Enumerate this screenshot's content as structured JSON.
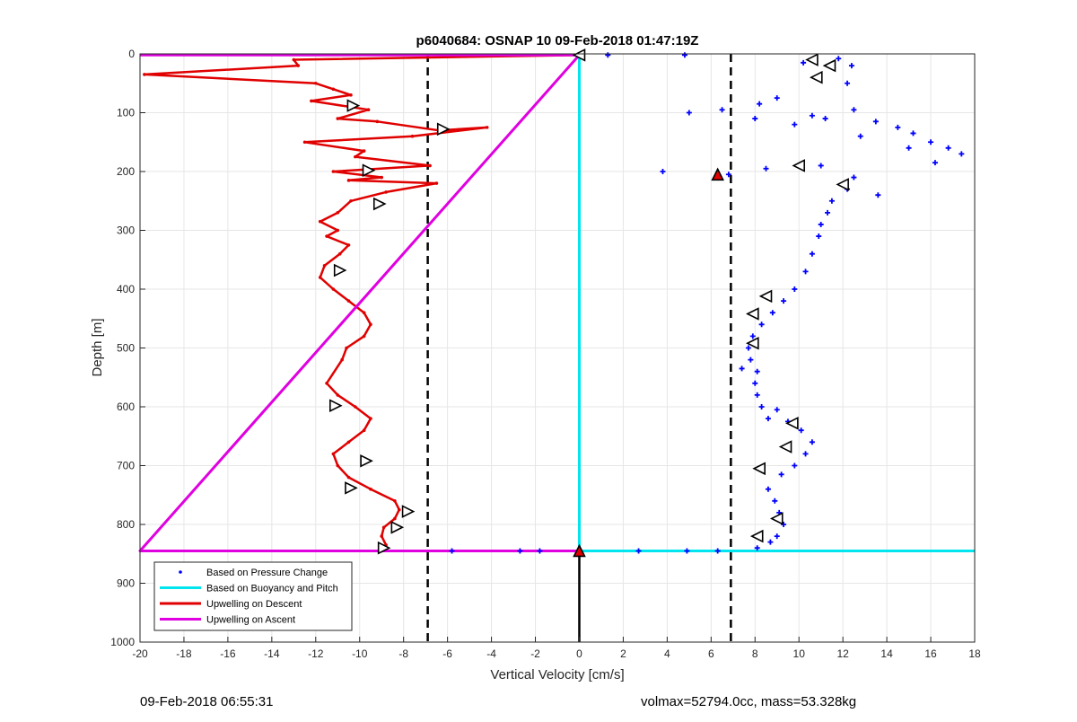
{
  "chart_data": {
    "type": "scatter",
    "title": "p6040684: OSNAP 10 09-Feb-2018 01:47:19Z",
    "xlabel": "Vertical Velocity [cm/s]",
    "ylabel": "Depth [m]",
    "xlim": [
      -20,
      18
    ],
    "ylim": [
      0,
      1000
    ],
    "y_reversed": true,
    "grid": true,
    "legend_position": "bottom-left",
    "x_ticks": [
      "-20",
      "-18",
      "-16",
      "-14",
      "-12",
      "-10",
      "-8",
      "-6",
      "-4",
      "-2",
      "0",
      "2",
      "4",
      "6",
      "8",
      "10",
      "12",
      "14",
      "16",
      "18"
    ],
    "y_ticks": [
      "0",
      "100",
      "200",
      "300",
      "400",
      "500",
      "600",
      "700",
      "800",
      "900",
      "1000"
    ],
    "reference_lines": [
      {
        "style": "dashed",
        "color": "#000000",
        "x": -6.9
      },
      {
        "style": "dashed",
        "color": "#000000",
        "x": 6.9
      }
    ],
    "series": [
      {
        "name": "Based on Pressure Change",
        "style": "points",
        "color": "#0000ff",
        "x": [
          1.3,
          4.8,
          10.2,
          11.8,
          12.4,
          12.2,
          8.2,
          9.0,
          10.6,
          11.2,
          12.5,
          13.5,
          14.5,
          15.2,
          16.0,
          16.8,
          17.4,
          16.2,
          15.0,
          12.8,
          9.8,
          8.0,
          6.5,
          5.0,
          3.8,
          6.8,
          8.5,
          11.0,
          12.5,
          13.6,
          12.2,
          11.5,
          11.3,
          11.0,
          10.9,
          10.6,
          10.3,
          9.8,
          9.3,
          8.8,
          8.3,
          7.9,
          7.7,
          7.8,
          8.1,
          8.0,
          7.4,
          8.1,
          8.3,
          8.6,
          9.0,
          9.5,
          10.1,
          10.6,
          10.3,
          9.8,
          9.2,
          8.6,
          8.9,
          9.1,
          9.3,
          9.0,
          8.7,
          8.1,
          6.3,
          4.9,
          2.7,
          -1.8,
          -2.7,
          -5.8
        ],
        "y": [
          2,
          2,
          15,
          8,
          20,
          50,
          85,
          75,
          105,
          110,
          95,
          115,
          125,
          135,
          150,
          160,
          170,
          185,
          160,
          140,
          120,
          110,
          95,
          100,
          200,
          205,
          195,
          190,
          210,
          240,
          230,
          250,
          270,
          290,
          310,
          340,
          370,
          400,
          420,
          440,
          460,
          480,
          500,
          520,
          540,
          560,
          535,
          580,
          600,
          620,
          605,
          625,
          640,
          660,
          680,
          700,
          715,
          740,
          760,
          780,
          800,
          820,
          830,
          840,
          845,
          845,
          845,
          845,
          845,
          845
        ]
      },
      {
        "name": "Based on Buoyancy and Pitch",
        "style": "line",
        "color": "#00e5ee",
        "x": [
          0,
          0,
          0,
          18
        ],
        "y": [
          2,
          845,
          845,
          845
        ]
      },
      {
        "name": "Upwelling on Descent",
        "style": "line",
        "color": "#e00000",
        "x": [
          0,
          -13,
          -12.8,
          -19.8,
          -12,
          -11.2,
          -10.4,
          -12.2,
          -9.6,
          -11,
          -9.2,
          -6.4,
          -4.2,
          -7.6,
          -12.5,
          -9.8,
          -10.2,
          -6.8,
          -11.2,
          -9.0,
          -10.5,
          -6.5,
          -8.8,
          -10.4,
          -11.0,
          -11.8,
          -11.0,
          -11.5,
          -10.5,
          -10.9,
          -11.6,
          -11.8,
          -11.2,
          -10.5,
          -9.8,
          -9.5,
          -9.8,
          -10.6,
          -10.8,
          -11.5,
          -11.0,
          -10.2,
          -9.5,
          -9.8,
          -10.5,
          -11.2,
          -11.0,
          -10.5,
          -9.5,
          -8.4,
          -8.2,
          -8.4,
          -8.9,
          -9.0,
          -8.8,
          -9.0
        ],
        "y": [
          2,
          10,
          20,
          35,
          50,
          60,
          70,
          80,
          95,
          110,
          115,
          130,
          125,
          140,
          150,
          165,
          175,
          190,
          200,
          210,
          215,
          220,
          235,
          250,
          270,
          285,
          300,
          310,
          325,
          340,
          360,
          380,
          400,
          420,
          440,
          460,
          480,
          500,
          520,
          560,
          580,
          600,
          620,
          640,
          660,
          680,
          700,
          720,
          740,
          760,
          775,
          790,
          805,
          820,
          835,
          845
        ]
      },
      {
        "name": "Upwelling on Ascent",
        "style": "line",
        "color": "#e000e0",
        "x": [
          -20,
          0,
          -20,
          0
        ],
        "y": [
          2,
          2,
          845,
          845
        ]
      }
    ],
    "triangles": [
      {
        "x": 0,
        "y": 2,
        "dir": "left",
        "color": "#000000"
      },
      {
        "x": 10.6,
        "y": 10,
        "dir": "left",
        "color": "#000000"
      },
      {
        "x": 11.4,
        "y": 20,
        "dir": "left",
        "color": "#000000"
      },
      {
        "x": 10.8,
        "y": 40,
        "dir": "left",
        "color": "#000000"
      },
      {
        "x": 10.0,
        "y": 190,
        "dir": "left",
        "color": "#000000"
      },
      {
        "x": 12.0,
        "y": 222,
        "dir": "left",
        "color": "#000000"
      },
      {
        "x": 6.3,
        "y": 205,
        "dir": "up",
        "color": "#e00000"
      },
      {
        "x": 8.5,
        "y": 412,
        "dir": "left",
        "color": "#000000"
      },
      {
        "x": 7.9,
        "y": 442,
        "dir": "left",
        "color": "#000000"
      },
      {
        "x": 7.9,
        "y": 492,
        "dir": "left",
        "color": "#000000"
      },
      {
        "x": 9.7,
        "y": 628,
        "dir": "left",
        "color": "#000000"
      },
      {
        "x": 9.4,
        "y": 668,
        "dir": "left",
        "color": "#000000"
      },
      {
        "x": 8.2,
        "y": 705,
        "dir": "left",
        "color": "#000000"
      },
      {
        "x": 9.0,
        "y": 790,
        "dir": "left",
        "color": "#000000"
      },
      {
        "x": 8.1,
        "y": 820,
        "dir": "left",
        "color": "#000000"
      },
      {
        "x": -10.3,
        "y": 88,
        "dir": "right",
        "color": "#000000"
      },
      {
        "x": -6.2,
        "y": 128,
        "dir": "right",
        "color": "#000000"
      },
      {
        "x": -9.6,
        "y": 198,
        "dir": "right",
        "color": "#000000"
      },
      {
        "x": -9.1,
        "y": 255,
        "dir": "right",
        "color": "#000000"
      },
      {
        "x": -10.9,
        "y": 368,
        "dir": "right",
        "color": "#000000"
      },
      {
        "x": -11.1,
        "y": 598,
        "dir": "right",
        "color": "#000000"
      },
      {
        "x": -9.7,
        "y": 692,
        "dir": "right",
        "color": "#000000"
      },
      {
        "x": -10.4,
        "y": 738,
        "dir": "right",
        "color": "#000000"
      },
      {
        "x": -7.8,
        "y": 778,
        "dir": "right",
        "color": "#000000"
      },
      {
        "x": -8.3,
        "y": 805,
        "dir": "right",
        "color": "#000000"
      },
      {
        "x": -8.9,
        "y": 840,
        "dir": "right",
        "color": "#000000"
      },
      {
        "x": 0,
        "y": 845,
        "dir": "up",
        "color": "#e00000"
      }
    ],
    "vertical_marker": {
      "x": 0,
      "y_from": 845,
      "y_to": 1000,
      "color": "#000000"
    }
  },
  "footer": {
    "timestamp": "09-Feb-2018 06:55:31",
    "mass_info": "volmax=52794.0cc, mass=53.328kg"
  }
}
